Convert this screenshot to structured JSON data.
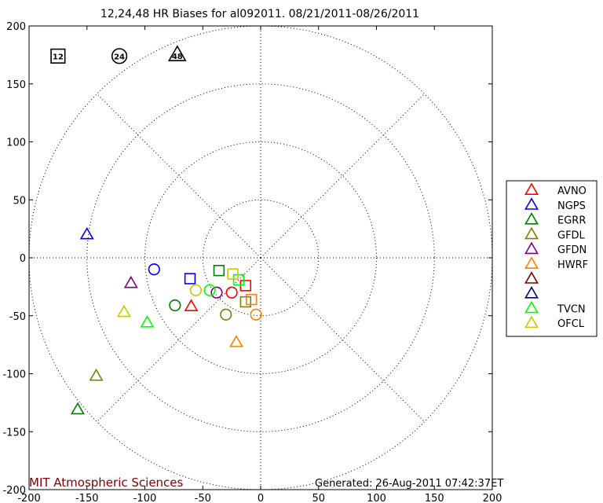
{
  "chart_data": {
    "type": "scatter",
    "title": "12,24,48 HR Biases for al092011. 08/21/2011-08/26/2011",
    "xlim": [
      -200,
      200
    ],
    "ylim": [
      -200,
      200
    ],
    "xticks": [
      -200,
      -150,
      -100,
      -50,
      0,
      50,
      100,
      150,
      200
    ],
    "yticks": [
      -200,
      -150,
      -100,
      -50,
      0,
      50,
      100,
      150,
      200
    ],
    "polar_grid": {
      "radii": [
        50,
        100,
        150,
        200
      ],
      "spokes_deg": [
        0,
        45,
        90,
        135,
        180,
        225,
        270,
        315
      ],
      "style": "dotted"
    },
    "marker_key": [
      {
        "shape": "square",
        "label": "12",
        "x": -175,
        "y": 174
      },
      {
        "shape": "circle",
        "label": "24",
        "x": -122,
        "y": 174
      },
      {
        "shape": "triangle",
        "label": "48",
        "x": -72,
        "y": 175
      }
    ],
    "legend_position": "right",
    "series": [
      {
        "name": "AVNO",
        "color": "#ff0000",
        "points": [
          {
            "h": 12,
            "x": -13,
            "y": -24
          },
          {
            "h": 24,
            "x": -25,
            "y": -30
          },
          {
            "h": 48,
            "x": -60,
            "y": -42
          }
        ]
      },
      {
        "name": "NGPS",
        "color": "#0000ff",
        "points": [
          {
            "h": 12,
            "x": -61,
            "y": -18
          },
          {
            "h": 24,
            "x": -92,
            "y": -10
          },
          {
            "h": 48,
            "x": -150,
            "y": 20
          }
        ]
      },
      {
        "name": "EGRR",
        "color": "#007f00",
        "points": [
          {
            "h": 12,
            "x": -36,
            "y": -11
          },
          {
            "h": 24,
            "x": -74,
            "y": -41
          },
          {
            "h": 48,
            "x": -158,
            "y": -131
          }
        ]
      },
      {
        "name": "GFDL",
        "color": "#7f7f00",
        "points": [
          {
            "h": 12,
            "x": -13,
            "y": -38
          },
          {
            "h": 24,
            "x": -30,
            "y": -49
          },
          {
            "h": 48,
            "x": -142,
            "y": -102
          }
        ]
      },
      {
        "name": "GFDN",
        "color": "#7f007f",
        "points": [
          {
            "h": 24,
            "x": -38,
            "y": -30
          },
          {
            "h": 48,
            "x": -112,
            "y": -22
          }
        ]
      },
      {
        "name": "HWRF",
        "color": "#ff7f00",
        "points": [
          {
            "h": 12,
            "x": -8,
            "y": -36
          },
          {
            "h": 24,
            "x": -4,
            "y": -49
          },
          {
            "h": 48,
            "x": -21,
            "y": -73
          }
        ]
      },
      {
        "name": "",
        "color": "#7f0000",
        "points": []
      },
      {
        "name": "",
        "color": "#00007f",
        "points": []
      },
      {
        "name": "TVCN",
        "color": "#00ff00",
        "points": [
          {
            "h": 12,
            "x": -19,
            "y": -19
          },
          {
            "h": 24,
            "x": -44,
            "y": -28
          },
          {
            "h": 48,
            "x": -98,
            "y": -56
          }
        ]
      },
      {
        "name": "OFCL",
        "color": "#c8c800",
        "points": [
          {
            "h": 12,
            "x": -24,
            "y": -14
          },
          {
            "h": 24,
            "x": -56,
            "y": -28
          },
          {
            "h": 48,
            "x": -118,
            "y": -47
          }
        ]
      }
    ]
  },
  "footer": {
    "credit": "MIT Atmospheric Sciences",
    "generated": "Generated: 26-Aug-2011 07:42:37ET"
  },
  "colors": {
    "credit": "#7f0000",
    "axis": "#000000",
    "grid": "#000000"
  }
}
